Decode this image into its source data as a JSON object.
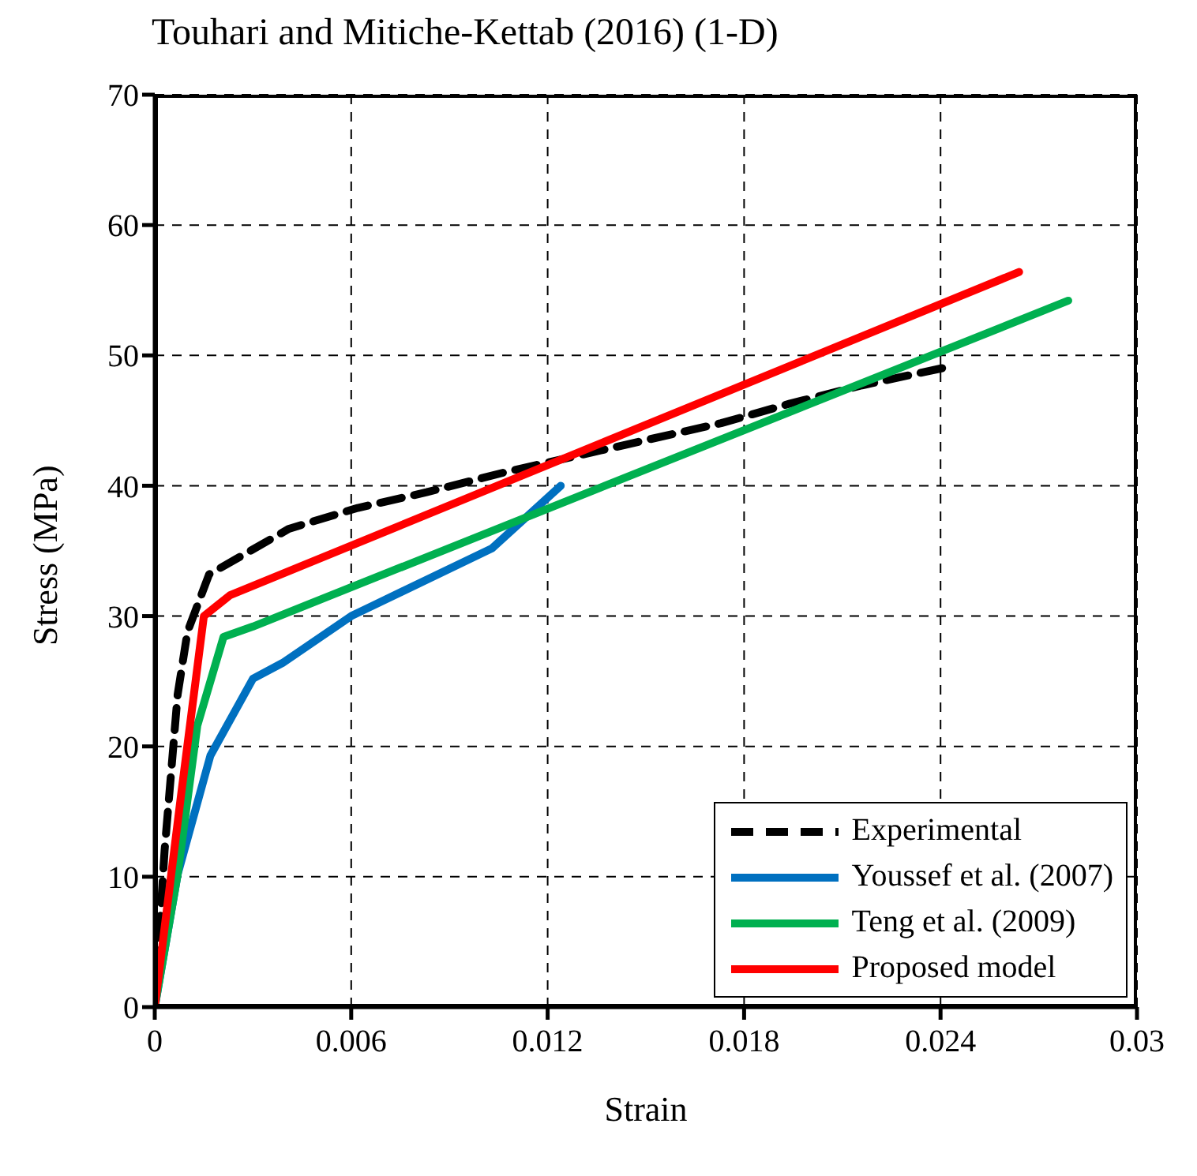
{
  "chart_data": {
    "type": "line",
    "title": "Touhari and Mitiche-Kettab (2016) (1-D)",
    "xlabel": "Strain",
    "ylabel": "Stress (MPa)",
    "xlim": [
      0,
      0.03
    ],
    "xticks": [
      0,
      0.006,
      0.012,
      0.018,
      0.024,
      0.03
    ],
    "ylim": [
      0,
      70
    ],
    "yticks": [
      0,
      10,
      20,
      30,
      40,
      50,
      60,
      70
    ],
    "grid": true,
    "legend": "bottom right",
    "marker": "none",
    "series": [
      {
        "name": "Experimental",
        "color": "#000000",
        "line_style": "dashed",
        "x": [
          0,
          0.0003,
          0.0007,
          0.001,
          0.00166,
          0.0025,
          0.0041,
          0.0062,
          0.0083,
          0.0108,
          0.0129,
          0.015,
          0.0173,
          0.0194,
          0.0216,
          0.0242
        ],
        "values": [
          0,
          12,
          24,
          28.8,
          33.2,
          34.4,
          36.7,
          38.3,
          39.5,
          41.1,
          42.3,
          43.5,
          44.8,
          46.3,
          47.7,
          49.1
        ]
      },
      {
        "name": "Youssef et al. (2007)",
        "color": "#0070c0",
        "line_style": "solid",
        "x": [
          0,
          0.0007,
          0.0017,
          0.003,
          0.0039,
          0.006,
          0.0103,
          0.0124
        ],
        "values": [
          0,
          10.2,
          19.3,
          25.2,
          26.4,
          30,
          35.2,
          40
        ]
      },
      {
        "name": "Teng et al. (2009)",
        "color": "#00b050",
        "line_style": "solid",
        "x": [
          0,
          0.0007,
          0.0013,
          0.0021,
          0.003,
          0.0279
        ],
        "values": [
          0,
          10.2,
          21.6,
          28.4,
          29.2,
          54.2
        ]
      },
      {
        "name": "Proposed model",
        "color": "#ff0000",
        "line_style": "solid",
        "x": [
          0,
          0.0008,
          0.0015,
          0.0023,
          0.0264
        ],
        "values": [
          0,
          16.2,
          30,
          31.6,
          56.4
        ]
      }
    ]
  }
}
